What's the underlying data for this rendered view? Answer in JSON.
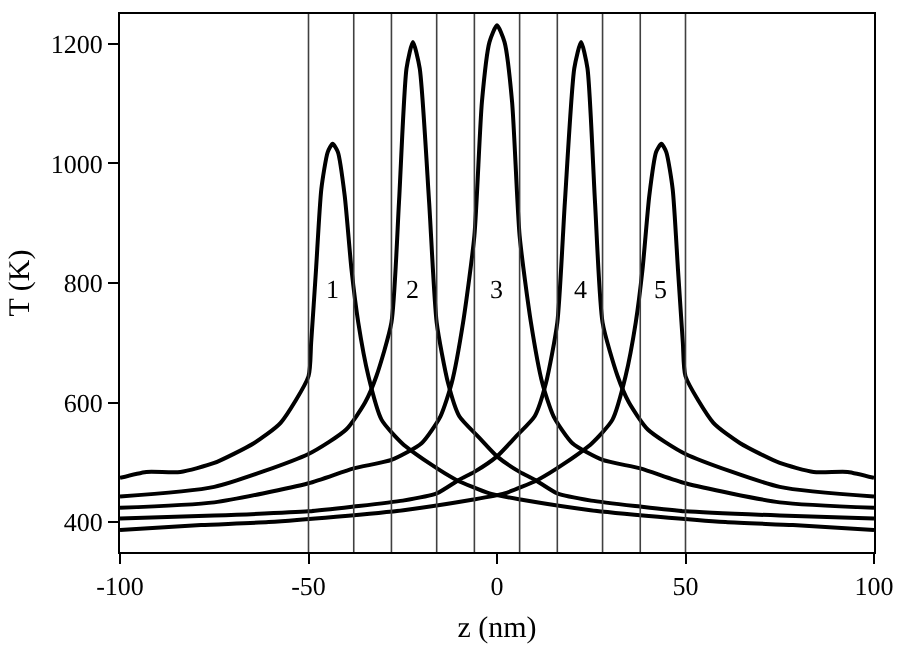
{
  "chart_data": {
    "type": "line",
    "xlabel": "z (nm)",
    "ylabel": "T (K)",
    "xlim": [
      -100,
      100
    ],
    "xticks": [
      -100,
      -50,
      0,
      50,
      100
    ],
    "ylim": [
      350,
      1250
    ],
    "yticks": [
      400,
      600,
      800,
      1000,
      1200
    ],
    "legend": false,
    "marker": "none",
    "line_style": "solid",
    "series": [
      {
        "name": "1",
        "color": "#000000",
        "x": [
          -100,
          -93,
          -84,
          -75,
          -64.5,
          -57.4,
          -50,
          -49.3,
          -48,
          -46.6,
          -44.9,
          -43.6,
          -42.2,
          -40.4,
          -38.6,
          -36.8,
          -34.1,
          -30.6,
          -25.2,
          -18.1,
          -10.9,
          -2,
          7,
          24.8,
          42.7,
          60.6,
          78.5,
          100
        ],
        "values": [
          474,
          484,
          484,
          499,
          532,
          566,
          644,
          700,
          823,
          957,
          1019,
          1033,
          1019,
          946,
          823,
          734,
          644,
          571,
          532,
          499,
          471,
          448,
          437,
          420,
          409,
          400,
          395,
          387
        ]
      },
      {
        "name": "2",
        "color": "#000000",
        "x": [
          -100,
          -75,
          -50,
          -40,
          -35,
          -32,
          -28,
          -26,
          -24,
          -22.3,
          -20.5,
          -18,
          -16,
          -13,
          -10,
          -5,
          0,
          6,
          10,
          16,
          25,
          38,
          50,
          75,
          100
        ],
        "values": [
          443,
          459,
          514,
          555,
          600,
          644,
          734,
          935,
          1159,
          1203,
          1159,
          935,
          734,
          633,
          577,
          543,
          510,
          484,
          471,
          448,
          436,
          426,
          418,
          411,
          406
        ]
      },
      {
        "name": "3",
        "color": "#000000",
        "x": [
          -100,
          -75,
          -50,
          -38,
          -28,
          -20,
          -15,
          -12,
          -9,
          -6,
          -4,
          -2,
          0,
          2,
          4,
          6,
          9,
          12,
          15,
          20,
          28,
          38,
          50,
          75,
          100
        ],
        "values": [
          424,
          433,
          465,
          490,
          504,
          532,
          577,
          633,
          734,
          879,
          1103,
          1203,
          1231,
          1203,
          1103,
          879,
          734,
          633,
          577,
          532,
          504,
          490,
          465,
          433,
          424
        ]
      },
      {
        "name": "4",
        "color": "#000000",
        "x": [
          -100,
          -75,
          -50,
          -38,
          -25,
          -16,
          -10,
          -6,
          0,
          5,
          10,
          13,
          16,
          18,
          20.5,
          22.3,
          24,
          26,
          28,
          32,
          35,
          40,
          50,
          75,
          100
        ],
        "values": [
          406,
          411,
          418,
          426,
          436,
          448,
          471,
          484,
          510,
          543,
          577,
          633,
          734,
          935,
          1159,
          1203,
          1159,
          935,
          734,
          644,
          600,
          555,
          514,
          459,
          443
        ]
      },
      {
        "name": "5",
        "color": "#000000",
        "x": [
          -100,
          -78.5,
          -60.6,
          -42.7,
          -24.8,
          -7,
          2,
          10.9,
          18.1,
          25.2,
          30.6,
          34.1,
          36.8,
          38.6,
          40.4,
          42.2,
          43.6,
          44.9,
          46.6,
          48,
          49.3,
          50,
          57.4,
          64.5,
          75,
          84,
          93,
          100
        ],
        "values": [
          387,
          395,
          400,
          409,
          420,
          437,
          448,
          471,
          499,
          532,
          571,
          644,
          734,
          823,
          946,
          1019,
          1033,
          1019,
          957,
          823,
          700,
          644,
          566,
          532,
          499,
          484,
          484,
          474
        ]
      }
    ],
    "ref_lines": [
      {
        "axis": "x",
        "value": -50,
        "color": "#404040"
      },
      {
        "axis": "x",
        "value": -38,
        "color": "#404040"
      },
      {
        "axis": "x",
        "value": -28,
        "color": "#404040"
      },
      {
        "axis": "x",
        "value": -16,
        "color": "#404040"
      },
      {
        "axis": "x",
        "value": -6,
        "color": "#404040"
      },
      {
        "axis": "x",
        "value": 6,
        "color": "#404040"
      },
      {
        "axis": "x",
        "value": 16,
        "color": "#404040"
      },
      {
        "axis": "x",
        "value": 28,
        "color": "#404040"
      },
      {
        "axis": "x",
        "value": 38,
        "color": "#404040"
      },
      {
        "axis": "x",
        "value": 50,
        "color": "#404040"
      }
    ]
  }
}
